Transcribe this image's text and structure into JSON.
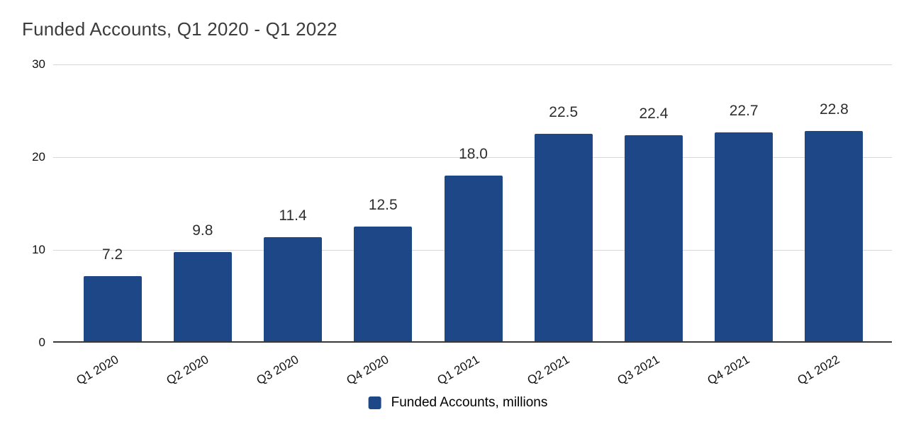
{
  "title": "Funded Accounts, Q1 2020 - Q1 2022",
  "legend": {
    "label": "Funded Accounts, millions"
  },
  "colors": {
    "bar": "#1e4787",
    "gridline": "#d7d7d7",
    "baseline": "#383838",
    "title_text": "#3c3c3c",
    "value_label_text": "#2e2e2e",
    "axis_label_text": "#111111"
  },
  "chart_data": {
    "type": "bar",
    "title": "Funded Accounts, Q1 2020 - Q1 2022",
    "categories": [
      "Q1 2020",
      "Q2 2020",
      "Q3 2020",
      "Q4 2020",
      "Q1 2021",
      "Q2 2021",
      "Q3 2021",
      "Q4 2021",
      "Q1 2022"
    ],
    "values": [
      7.2,
      9.8,
      11.4,
      12.5,
      18.0,
      22.5,
      22.4,
      22.7,
      22.8
    ],
    "value_labels": [
      "7.2",
      "9.8",
      "11.4",
      "12.5",
      "18.0",
      "22.5",
      "22.4",
      "22.7",
      "22.8"
    ],
    "series_name": "Funded Accounts, millions",
    "xlabel": "",
    "ylabel": "",
    "ylim": [
      0,
      30
    ],
    "yticks": [
      0,
      10,
      20,
      30
    ],
    "grid": true,
    "legend_position": "bottom",
    "x_tick_rotation_deg": -30
  }
}
